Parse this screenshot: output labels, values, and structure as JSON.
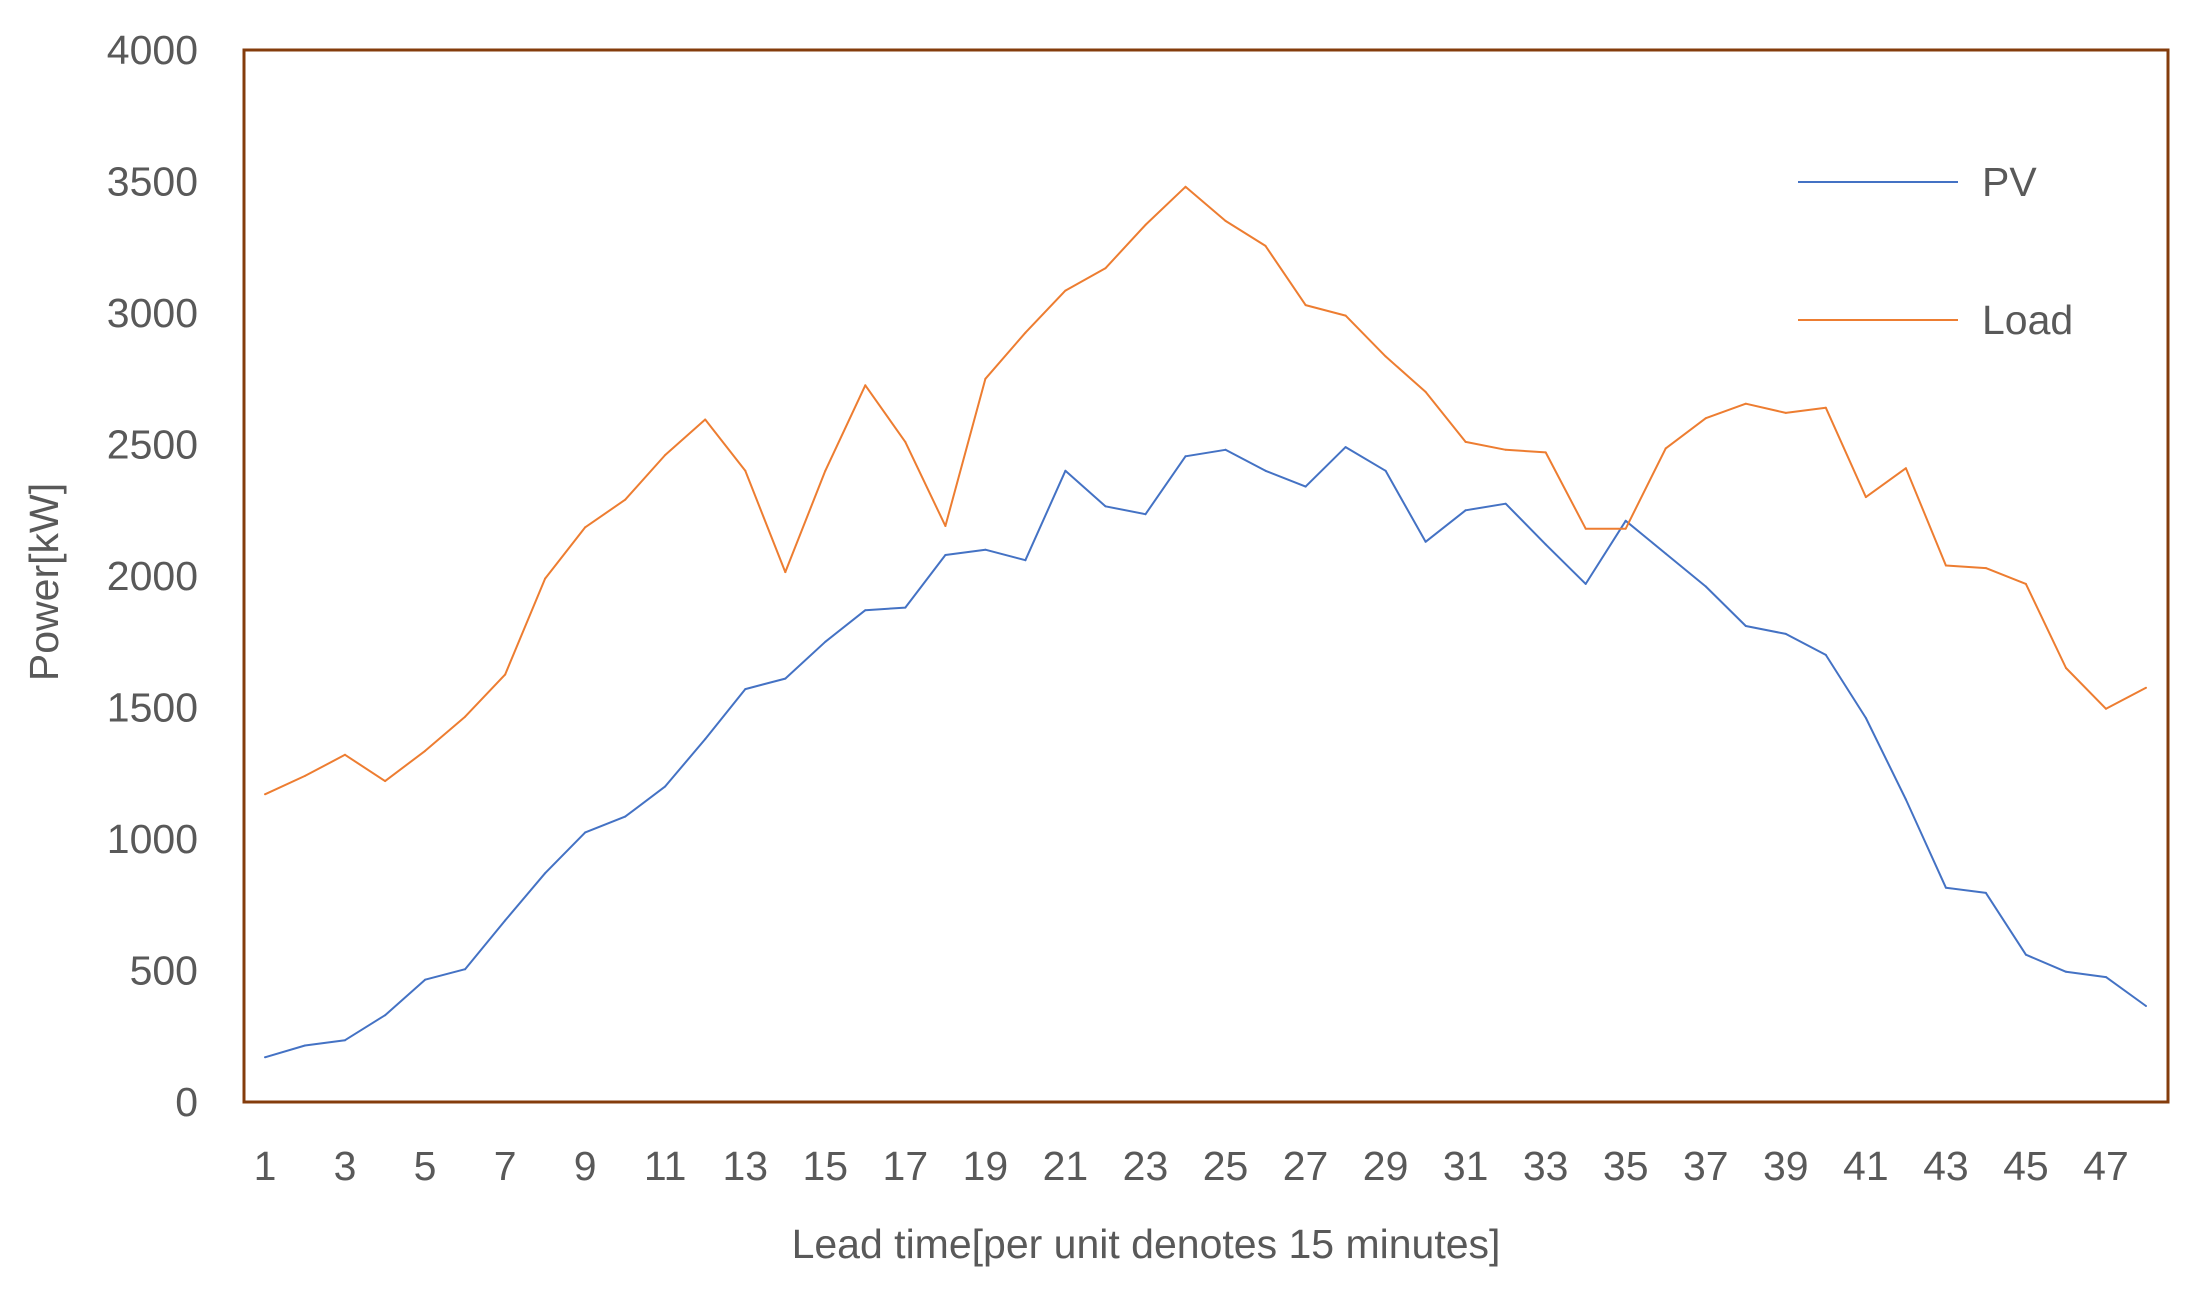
{
  "chart_data": {
    "type": "line",
    "xlabel": "Lead time[per unit denotes 15 minutes]",
    "ylabel": "Power[kW]",
    "ylim": [
      0,
      4000
    ],
    "y_ticks": [
      0,
      500,
      1000,
      1500,
      2000,
      2500,
      3000,
      3500,
      4000
    ],
    "x": [
      1,
      2,
      3,
      4,
      5,
      6,
      7,
      8,
      9,
      10,
      11,
      12,
      13,
      14,
      15,
      16,
      17,
      18,
      19,
      20,
      21,
      22,
      23,
      24,
      25,
      26,
      27,
      28,
      29,
      30,
      31,
      32,
      33,
      34,
      35,
      36,
      37,
      38,
      39,
      40,
      41,
      42,
      43,
      44,
      45,
      46,
      47,
      48
    ],
    "x_tick_labels": [
      1,
      3,
      5,
      7,
      9,
      11,
      13,
      15,
      17,
      19,
      21,
      23,
      25,
      27,
      29,
      31,
      33,
      35,
      37,
      39,
      41,
      43,
      45,
      47
    ],
    "legend_position": "top-right",
    "grid": false,
    "frame_color": "#843C0C",
    "series": [
      {
        "name": "PV",
        "color": "#4472C4",
        "values": [
          170,
          215,
          235,
          330,
          465,
          505,
          690,
          870,
          1025,
          1085,
          1200,
          1380,
          1570,
          1610,
          1750,
          1870,
          1880,
          2080,
          2100,
          2060,
          2400,
          2265,
          2235,
          2455,
          2480,
          2400,
          2340,
          2490,
          2400,
          2130,
          2250,
          2275,
          2120,
          1970,
          2210,
          2085,
          1960,
          1810,
          1780,
          1700,
          1460,
          1150,
          815,
          795,
          560,
          495,
          475,
          365
        ]
      },
      {
        "name": "Load",
        "color": "#ED7D31",
        "values": [
          1170,
          1240,
          1320,
          1220,
          1335,
          1465,
          1625,
          1990,
          2185,
          2290,
          2460,
          2595,
          2400,
          2015,
          2400,
          2725,
          2510,
          2190,
          2750,
          2925,
          3085,
          3170,
          3335,
          3480,
          3350,
          3255,
          3030,
          2990,
          2835,
          2700,
          2510,
          2480,
          2470,
          2180,
          2180,
          2485,
          2600,
          2655,
          2620,
          2640,
          2300,
          2410,
          2040,
          2030,
          1970,
          1650,
          1495,
          1575
        ]
      }
    ]
  }
}
